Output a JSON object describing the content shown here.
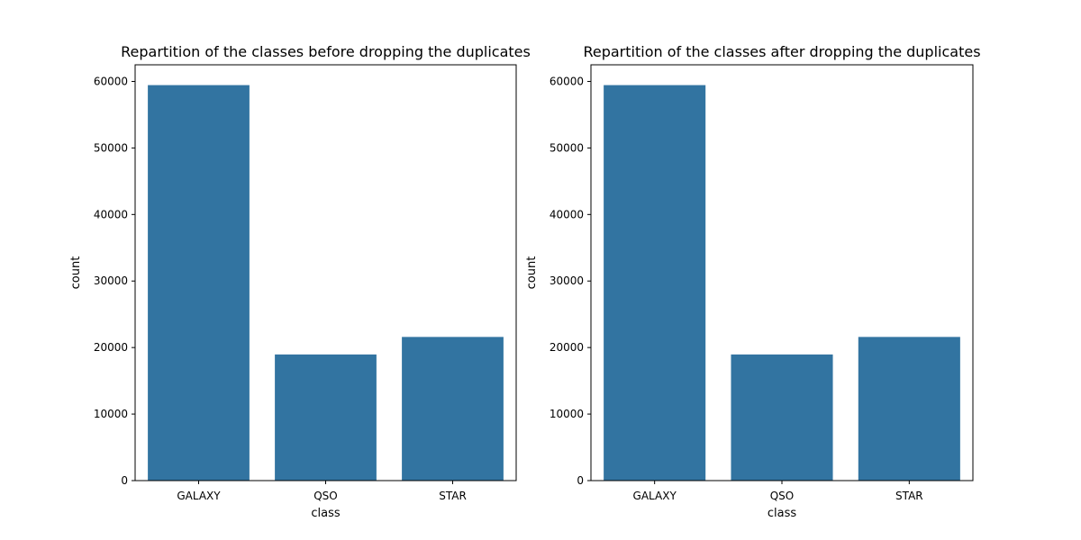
{
  "chart_data": [
    {
      "type": "bar",
      "title": "Repartition of the classes before dropping the duplicates",
      "xlabel": "class",
      "ylabel": "count",
      "categories": [
        "GALAXY",
        "QSO",
        "STAR"
      ],
      "values": [
        59445,
        18961,
        21594
      ],
      "ylim": [
        0,
        62500
      ],
      "yticks": [
        0,
        10000,
        20000,
        30000,
        40000,
        50000,
        60000
      ],
      "grid": false,
      "bar_color": "#3274a1"
    },
    {
      "type": "bar",
      "title": "Repartition of the classes after dropping the duplicates",
      "xlabel": "class",
      "ylabel": "count",
      "categories": [
        "GALAXY",
        "QSO",
        "STAR"
      ],
      "values": [
        59445,
        18961,
        21594
      ],
      "ylim": [
        0,
        62500
      ],
      "yticks": [
        0,
        10000,
        20000,
        30000,
        40000,
        50000,
        60000
      ],
      "grid": false,
      "bar_color": "#3274a1"
    }
  ]
}
